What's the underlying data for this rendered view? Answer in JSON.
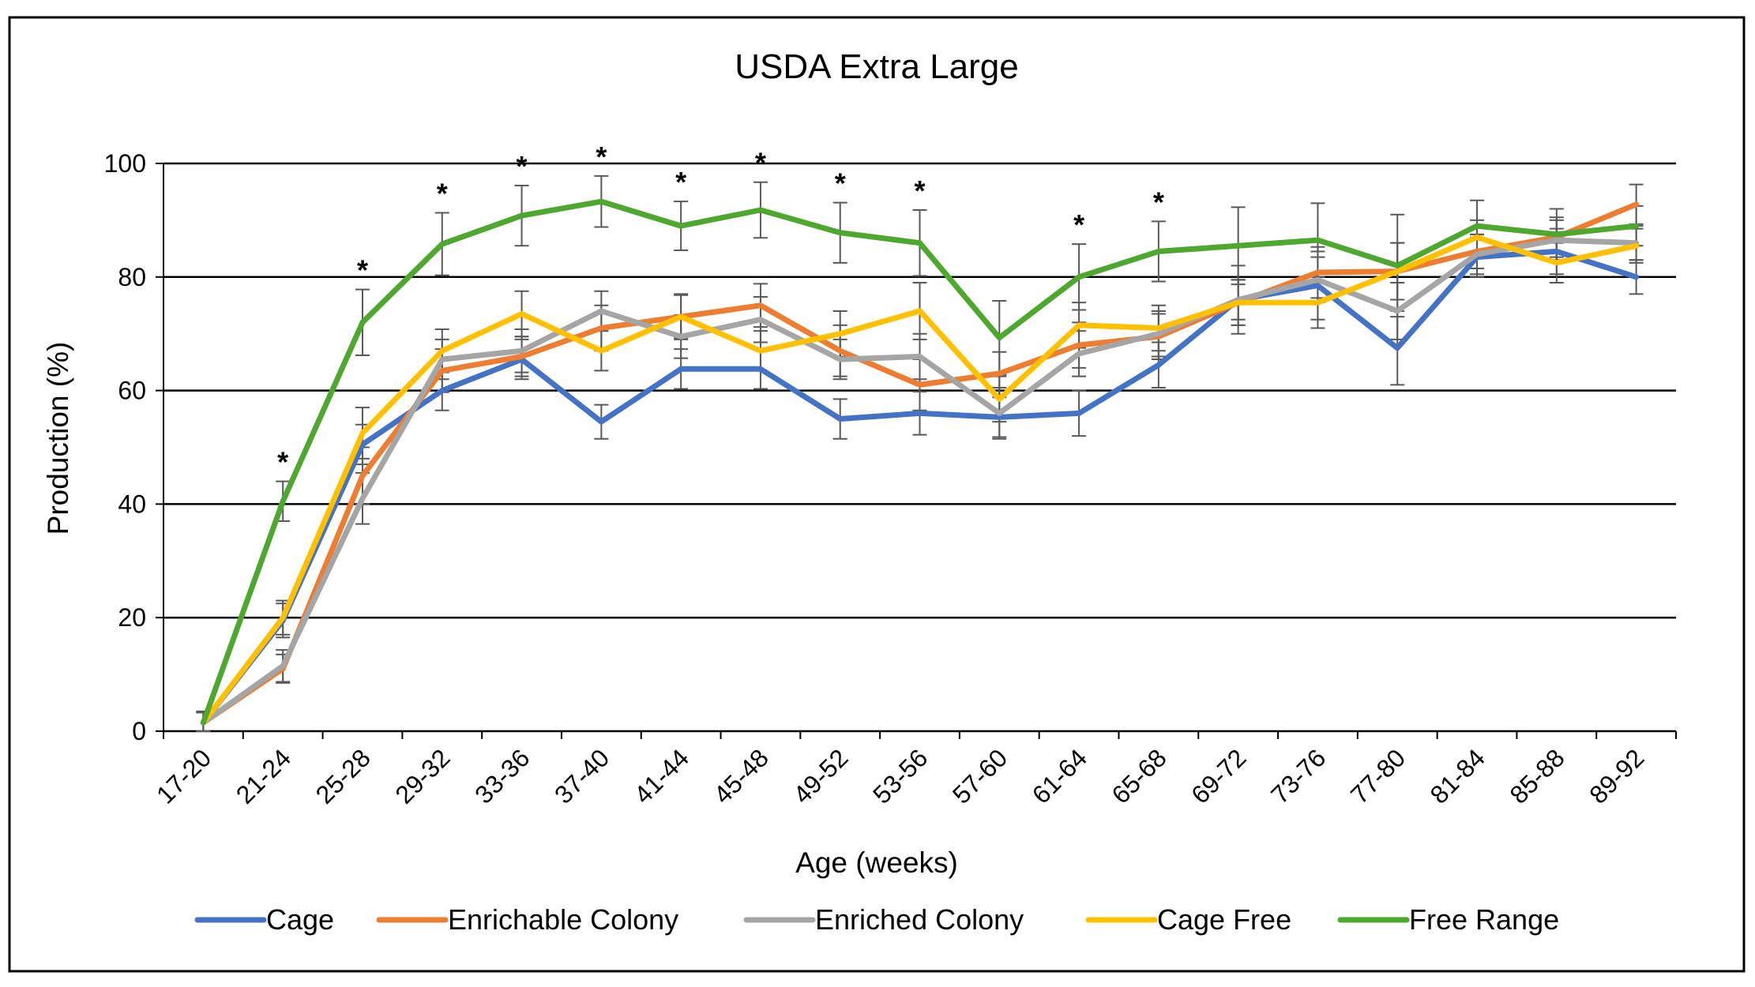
{
  "chart_data": {
    "type": "line",
    "title": "USDA Extra Large",
    "xlabel": "Age (weeks)",
    "ylabel": "Production (%)",
    "ylim": [
      0,
      100
    ],
    "yticks": [
      0,
      20,
      40,
      60,
      80,
      100
    ],
    "grid": true,
    "legend_position": "bottom",
    "categories": [
      "17-20",
      "21-24",
      "25-28",
      "29-32",
      "33-36",
      "37-40",
      "41-44",
      "45-48",
      "49-52",
      "53-56",
      "57-60",
      "61-64",
      "65-68",
      "69-72",
      "73-76",
      "77-80",
      "81-84",
      "85-88",
      "89-92"
    ],
    "significance_marker": "*",
    "significant_indices": [
      1,
      2,
      3,
      4,
      5,
      6,
      7,
      8,
      9,
      11,
      12
    ],
    "series": [
      {
        "name": "Cage",
        "color": "#4472C4",
        "values": [
          1.5,
          19.5,
          50.5,
          60.0,
          65.5,
          54.5,
          63.8,
          63.8,
          55.0,
          56.0,
          55.3,
          56.0,
          64.5,
          76.0,
          78.5,
          67.5,
          83.5,
          84.5,
          80.0
        ],
        "errors": [
          1.8,
          3.0,
          3.5,
          3.5,
          3.5,
          3.0,
          3.5,
          3.5,
          3.5,
          3.8,
          3.5,
          4.0,
          4.0,
          6.0,
          6.0,
          6.5,
          3.5,
          4.0,
          3.0
        ]
      },
      {
        "name": "Enrichable Colony",
        "color": "#ED7D31",
        "values": [
          1.5,
          11.0,
          45.0,
          63.5,
          66.0,
          71.0,
          73.0,
          75.0,
          67.0,
          61.0,
          63.0,
          68.0,
          69.5,
          75.5,
          80.8,
          81.0,
          84.5,
          87.0,
          92.8
        ],
        "errors": [
          1.8,
          2.5,
          5.0,
          3.8,
          3.5,
          4.0,
          4.0,
          3.8,
          4.5,
          4.5,
          3.8,
          4.0,
          4.0,
          4.0,
          4.5,
          5.0,
          3.0,
          3.5,
          3.5
        ]
      },
      {
        "name": "Enriched Colony",
        "color": "#A5A5A5",
        "values": [
          1.5,
          11.5,
          41.0,
          65.5,
          67.0,
          74.0,
          69.5,
          72.5,
          65.5,
          66.0,
          56.0,
          66.5,
          70.0,
          76.0,
          79.5,
          74.0,
          84.0,
          86.5,
          86.0
        ],
        "errors": [
          1.8,
          2.8,
          4.5,
          3.5,
          3.8,
          3.5,
          3.8,
          4.0,
          3.5,
          4.0,
          4.5,
          4.0,
          4.0,
          3.5,
          4.0,
          5.0,
          3.5,
          3.5,
          3.0
        ]
      },
      {
        "name": "Cage Free",
        "color": "#FFC000",
        "values": [
          1.5,
          20.0,
          52.5,
          67.0,
          73.5,
          67.0,
          73.0,
          67.0,
          70.0,
          74.0,
          58.5,
          71.5,
          71.0,
          75.5,
          75.5,
          81.0,
          87.0,
          82.5,
          85.5
        ],
        "errors": [
          1.8,
          3.0,
          4.5,
          3.8,
          4.0,
          3.5,
          3.8,
          3.5,
          4.0,
          5.0,
          4.0,
          4.0,
          4.0,
          4.0,
          4.5,
          5.0,
          3.0,
          3.5,
          3.0
        ]
      },
      {
        "name": "Free Range",
        "color": "#4EA72E",
        "values": [
          1.5,
          40.5,
          72.0,
          85.8,
          90.8,
          93.3,
          89.0,
          91.8,
          87.8,
          86.0,
          69.3,
          80.0,
          84.5,
          85.5,
          86.5,
          82.0,
          89.0,
          87.5,
          89.0
        ],
        "errors": [
          2.0,
          3.5,
          5.8,
          5.5,
          5.3,
          4.5,
          4.3,
          4.9,
          5.3,
          5.8,
          6.5,
          5.8,
          5.3,
          6.8,
          6.5,
          9.0,
          4.5,
          4.5,
          3.5
        ]
      }
    ]
  }
}
